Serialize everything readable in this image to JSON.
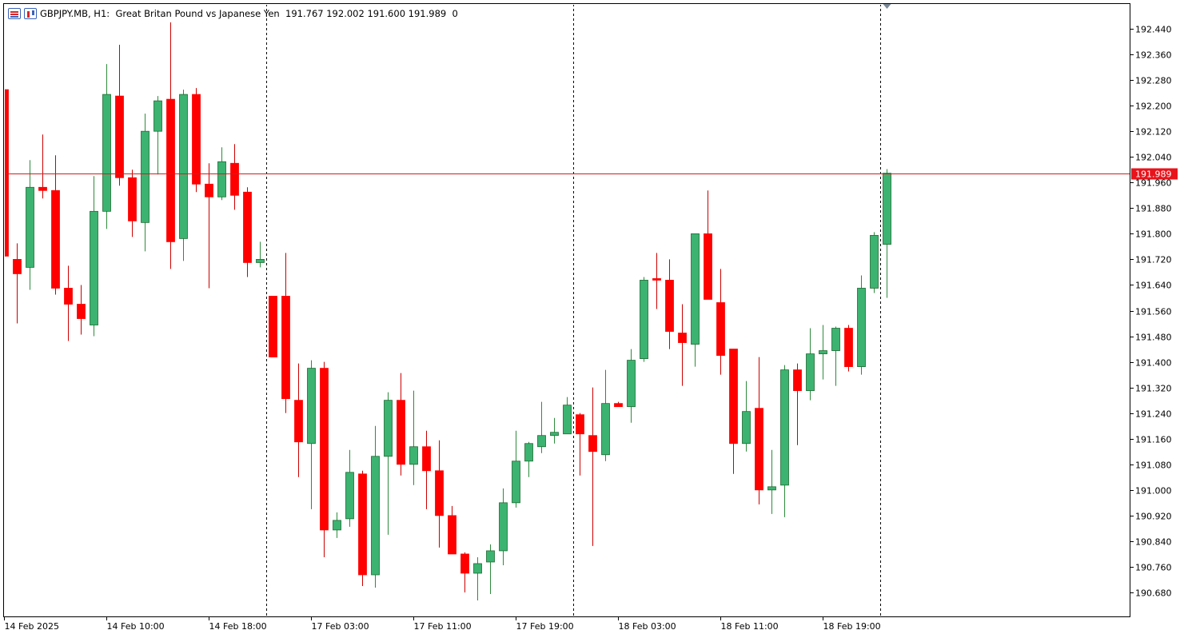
{
  "header": {
    "symbol": "GBPJPY.MB",
    "timeframe": "H1",
    "description": "Great Britan Pound vs Japanese Yen",
    "ohlc": "191.767 192.002 191.600 191.989",
    "volume": "0"
  },
  "colors": {
    "bull": "#3cb371",
    "bear": "#ff0000",
    "wick_bull": "#2e8b3c",
    "wick_bear": "#cc0000",
    "price_line": "#cc1f1f",
    "price_label_bg": "#e8141c"
  },
  "chart_data": {
    "type": "candlestick",
    "symbol": "GBPJPY.MB",
    "timeframe": "H1",
    "ylim": [
      190.6,
      192.52
    ],
    "y_ticks": [
      "192.440",
      "192.360",
      "192.280",
      "192.200",
      "192.120",
      "192.040",
      "191.960",
      "191.880",
      "191.800",
      "191.720",
      "191.640",
      "191.560",
      "191.480",
      "191.400",
      "191.320",
      "191.240",
      "191.160",
      "191.080",
      "191.000",
      "190.920",
      "190.840",
      "190.760",
      "190.680"
    ],
    "current_price": "191.989",
    "x_labels": [
      {
        "label": "14 Feb 2025",
        "index": 0
      },
      {
        "label": "14 Feb 10:00",
        "index": 8
      },
      {
        "label": "14 Feb 18:00",
        "index": 16
      },
      {
        "label": "17 Feb 03:00",
        "index": 24
      },
      {
        "label": "17 Feb 11:00",
        "index": 32
      },
      {
        "label": "17 Feb 19:00",
        "index": 40
      },
      {
        "label": "18 Feb 03:00",
        "index": 48
      },
      {
        "label": "18 Feb 11:00",
        "index": 56
      },
      {
        "label": "18 Feb 19:00",
        "index": 64
      }
    ],
    "separators": [
      20.5,
      44.5,
      68.5
    ],
    "candles": [
      {
        "o": 192.25,
        "h": 192.25,
        "l": 191.73,
        "c": 191.73
      },
      {
        "o": 191.72,
        "h": 191.77,
        "l": 191.52,
        "c": 191.675
      },
      {
        "o": 191.695,
        "h": 192.03,
        "l": 191.625,
        "c": 191.945
      },
      {
        "o": 191.945,
        "h": 192.11,
        "l": 191.91,
        "c": 191.935
      },
      {
        "o": 191.935,
        "h": 192.045,
        "l": 191.61,
        "c": 191.63
      },
      {
        "o": 191.63,
        "h": 191.7,
        "l": 191.465,
        "c": 191.58
      },
      {
        "o": 191.58,
        "h": 191.64,
        "l": 191.485,
        "c": 191.535
      },
      {
        "o": 191.515,
        "h": 191.98,
        "l": 191.48,
        "c": 191.87
      },
      {
        "o": 191.87,
        "h": 192.33,
        "l": 191.815,
        "c": 192.235
      },
      {
        "o": 192.23,
        "h": 192.39,
        "l": 191.95,
        "c": 191.975
      },
      {
        "o": 191.975,
        "h": 192.0,
        "l": 191.79,
        "c": 191.84
      },
      {
        "o": 191.835,
        "h": 192.175,
        "l": 191.745,
        "c": 192.12
      },
      {
        "o": 192.12,
        "h": 192.23,
        "l": 191.985,
        "c": 192.215
      },
      {
        "o": 192.22,
        "h": 192.46,
        "l": 191.69,
        "c": 191.775
      },
      {
        "o": 191.785,
        "h": 192.25,
        "l": 191.715,
        "c": 192.235
      },
      {
        "o": 192.235,
        "h": 192.255,
        "l": 191.93,
        "c": 191.955
      },
      {
        "o": 191.955,
        "h": 192.02,
        "l": 191.63,
        "c": 191.915
      },
      {
        "o": 191.915,
        "h": 192.07,
        "l": 191.905,
        "c": 192.025
      },
      {
        "o": 192.02,
        "h": 192.08,
        "l": 191.875,
        "c": 191.92
      },
      {
        "o": 191.93,
        "h": 191.945,
        "l": 191.665,
        "c": 191.71
      },
      {
        "o": 191.71,
        "h": 191.775,
        "l": 191.695,
        "c": 191.72
      },
      {
        "o": 191.605,
        "h": 191.605,
        "l": 191.415,
        "c": 191.415
      },
      {
        "o": 191.605,
        "h": 191.74,
        "l": 191.24,
        "c": 191.285
      },
      {
        "o": 191.28,
        "h": 191.395,
        "l": 191.04,
        "c": 191.15
      },
      {
        "o": 191.145,
        "h": 191.405,
        "l": 190.94,
        "c": 191.38
      },
      {
        "o": 191.38,
        "h": 191.4,
        "l": 190.79,
        "c": 190.875
      },
      {
        "o": 190.875,
        "h": 190.93,
        "l": 190.85,
        "c": 190.905
      },
      {
        "o": 190.91,
        "h": 191.125,
        "l": 190.885,
        "c": 191.055
      },
      {
        "o": 191.05,
        "h": 191.06,
        "l": 190.7,
        "c": 190.735
      },
      {
        "o": 190.735,
        "h": 191.2,
        "l": 190.695,
        "c": 191.105
      },
      {
        "o": 191.105,
        "h": 191.305,
        "l": 190.86,
        "c": 191.28
      },
      {
        "o": 191.28,
        "h": 191.365,
        "l": 191.045,
        "c": 191.08
      },
      {
        "o": 191.08,
        "h": 191.31,
        "l": 191.015,
        "c": 191.135
      },
      {
        "o": 191.135,
        "h": 191.185,
        "l": 190.94,
        "c": 191.06
      },
      {
        "o": 191.06,
        "h": 191.155,
        "l": 190.82,
        "c": 190.92
      },
      {
        "o": 190.92,
        "h": 190.95,
        "l": 190.805,
        "c": 190.8
      },
      {
        "o": 190.8,
        "h": 190.805,
        "l": 190.68,
        "c": 190.74
      },
      {
        "o": 190.74,
        "h": 190.79,
        "l": 190.655,
        "c": 190.77
      },
      {
        "o": 190.775,
        "h": 190.83,
        "l": 190.675,
        "c": 190.81
      },
      {
        "o": 190.81,
        "h": 191.005,
        "l": 190.765,
        "c": 190.96
      },
      {
        "o": 190.96,
        "h": 191.185,
        "l": 190.945,
        "c": 191.09
      },
      {
        "o": 191.09,
        "h": 191.15,
        "l": 191.04,
        "c": 191.145
      },
      {
        "o": 191.135,
        "h": 191.275,
        "l": 191.115,
        "c": 191.17
      },
      {
        "o": 191.17,
        "h": 191.225,
        "l": 191.145,
        "c": 191.18
      },
      {
        "o": 191.175,
        "h": 191.29,
        "l": 191.175,
        "c": 191.265
      },
      {
        "o": 191.235,
        "h": 191.24,
        "l": 191.045,
        "c": 191.175
      },
      {
        "o": 191.17,
        "h": 191.32,
        "l": 190.825,
        "c": 191.12
      },
      {
        "o": 191.11,
        "h": 191.375,
        "l": 191.09,
        "c": 191.27
      },
      {
        "o": 191.27,
        "h": 191.275,
        "l": 191.26,
        "c": 191.26
      },
      {
        "o": 191.26,
        "h": 191.44,
        "l": 191.21,
        "c": 191.405
      },
      {
        "o": 191.41,
        "h": 191.665,
        "l": 191.4,
        "c": 191.655
      },
      {
        "o": 191.66,
        "h": 191.74,
        "l": 191.565,
        "c": 191.655
      },
      {
        "o": 191.655,
        "h": 191.72,
        "l": 191.44,
        "c": 191.495
      },
      {
        "o": 191.49,
        "h": 191.58,
        "l": 191.325,
        "c": 191.46
      },
      {
        "o": 191.455,
        "h": 191.8,
        "l": 191.385,
        "c": 191.8
      },
      {
        "o": 191.8,
        "h": 191.935,
        "l": 191.595,
        "c": 191.595
      },
      {
        "o": 191.585,
        "h": 191.69,
        "l": 191.36,
        "c": 191.42
      },
      {
        "o": 191.44,
        "h": 191.44,
        "l": 191.05,
        "c": 191.145
      },
      {
        "o": 191.145,
        "h": 191.34,
        "l": 191.12,
        "c": 191.245
      },
      {
        "o": 191.255,
        "h": 191.415,
        "l": 190.955,
        "c": 191.0
      },
      {
        "o": 191.0,
        "h": 191.125,
        "l": 190.925,
        "c": 191.01
      },
      {
        "o": 191.015,
        "h": 191.39,
        "l": 190.915,
        "c": 191.375
      },
      {
        "o": 191.375,
        "h": 191.395,
        "l": 191.14,
        "c": 191.31
      },
      {
        "o": 191.31,
        "h": 191.505,
        "l": 191.28,
        "c": 191.425
      },
      {
        "o": 191.425,
        "h": 191.515,
        "l": 191.345,
        "c": 191.435
      },
      {
        "o": 191.435,
        "h": 191.51,
        "l": 191.325,
        "c": 191.505
      },
      {
        "o": 191.505,
        "h": 191.515,
        "l": 191.37,
        "c": 191.385
      },
      {
        "o": 191.385,
        "h": 191.67,
        "l": 191.36,
        "c": 191.63
      },
      {
        "o": 191.63,
        "h": 191.805,
        "l": 191.615,
        "c": 191.795
      },
      {
        "o": 191.767,
        "h": 192.002,
        "l": 191.6,
        "c": 191.989
      }
    ]
  }
}
